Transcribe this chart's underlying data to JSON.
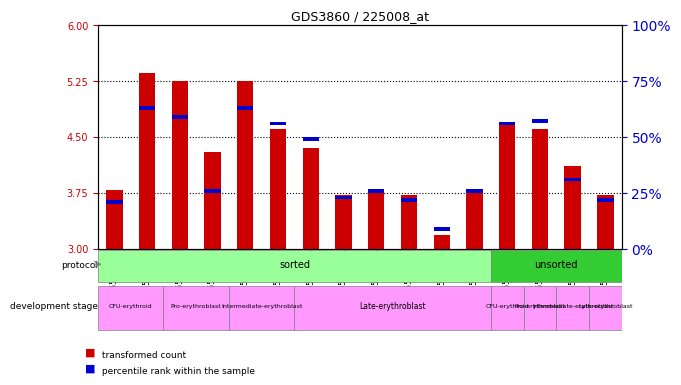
{
  "title": "GDS3860 / 225008_at",
  "samples": [
    "GSM559689",
    "GSM559690",
    "GSM559691",
    "GSM559692",
    "GSM559693",
    "GSM559694",
    "GSM559695",
    "GSM559696",
    "GSM559697",
    "GSM559698",
    "GSM559699",
    "GSM559700",
    "GSM559701",
    "GSM559702",
    "GSM559703",
    "GSM559704"
  ],
  "transformed_count": [
    3.78,
    5.35,
    5.25,
    4.3,
    5.25,
    4.6,
    4.35,
    3.72,
    3.78,
    3.72,
    3.18,
    3.8,
    4.65,
    4.6,
    4.1,
    3.72
  ],
  "percentile_rank": [
    20,
    62,
    58,
    25,
    62,
    55,
    48,
    22,
    25,
    21,
    8,
    25,
    55,
    56,
    30,
    21
  ],
  "y_min": 3.0,
  "y_max": 6.0,
  "y_ticks": [
    3.0,
    3.75,
    4.5,
    5.25,
    6.0
  ],
  "right_y_ticks": [
    0,
    25,
    50,
    75,
    100
  ],
  "bar_color": "#cc0000",
  "percentile_color": "#0000cc",
  "protocol_sorted_indices": [
    0,
    11
  ],
  "protocol_unsorted_indices": [
    12,
    15
  ],
  "protocol_sorted_label": "sorted",
  "protocol_unsorted_label": "unsorted",
  "protocol_sorted_color": "#99ff99",
  "protocol_unsorted_color": "#33cc33",
  "dev_stage_groups": [
    {
      "label": "CFU-erythroid",
      "start": 0,
      "end": 1,
      "color": "#ff99ff"
    },
    {
      "label": "Pro-erythroblast",
      "start": 2,
      "end": 3,
      "color": "#ff99ff"
    },
    {
      "label": "Intermediate-erythroblast",
      "start": 4,
      "end": 5,
      "color": "#ff99ff"
    },
    {
      "label": "Late-erythroblast",
      "start": 6,
      "end": 9,
      "color": "#ff99ff"
    },
    {
      "label": "CFU-erythroid",
      "start": 12,
      "end": 12,
      "color": "#ff99ff"
    },
    {
      "label": "Pro-erythroblast",
      "start": 13,
      "end": 13,
      "color": "#ff99ff"
    },
    {
      "label": "Intermediate-erythroblast",
      "start": 14,
      "end": 14,
      "color": "#ff99ff"
    },
    {
      "label": "Late-erythroblast",
      "start": 15,
      "end": 15,
      "color": "#ff99ff"
    }
  ],
  "xlabel_color": "#333333",
  "left_axis_color": "#cc0000",
  "right_axis_color": "#0000cc",
  "bg_color": "#ffffff",
  "plot_bg_color": "#ffffff"
}
